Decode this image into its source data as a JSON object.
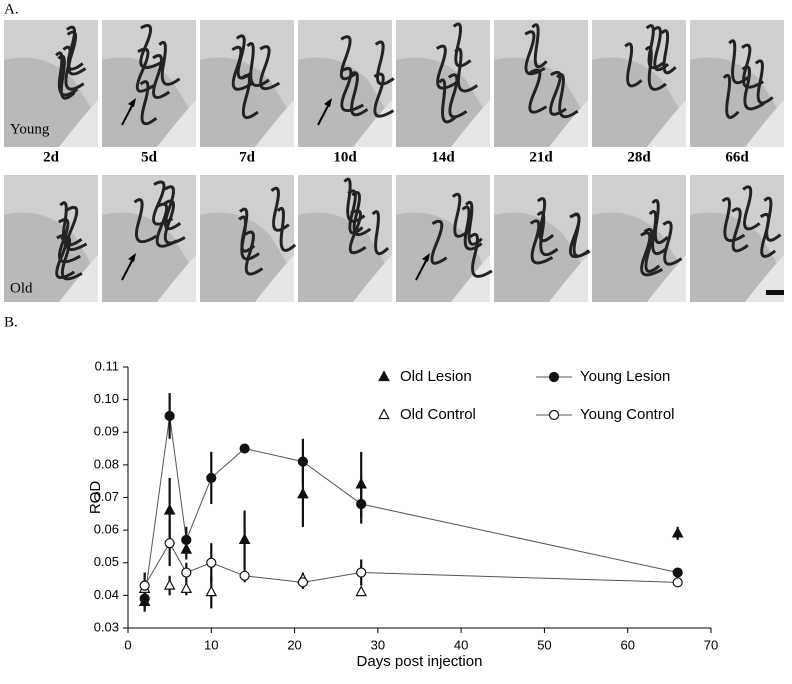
{
  "panel_a": {
    "label": "A.",
    "rows": [
      "Young",
      "Old"
    ],
    "days": [
      "2d",
      "5d",
      "7d",
      "10d",
      "14d",
      "21d",
      "28d",
      "66d"
    ]
  },
  "panel_b_label": "B.",
  "chart_data": {
    "type": "scatter",
    "x_label": "Days post injection",
    "y_label": "ROD",
    "xlim": [
      0,
      70
    ],
    "xticks": [
      0,
      10,
      20,
      30,
      40,
      50,
      60,
      70
    ],
    "ylim": [
      0.03,
      0.11
    ],
    "yticks": [
      0.03,
      0.04,
      0.05,
      0.06,
      0.07,
      0.08,
      0.09,
      {
        "value": 0.1,
        "label": "0.10"
      },
      0.11
    ],
    "legend": "upper right",
    "x": [
      2,
      5,
      7,
      10,
      14,
      21,
      28,
      66
    ],
    "series": [
      {
        "name": "Old Lesion",
        "color": "#111111",
        "marker": "triangle",
        "filled": true,
        "line": false,
        "values": [
          0.038,
          0.066,
          0.054,
          null,
          0.057,
          0.071,
          0.074,
          0.059
        ],
        "errors": [
          0.003,
          0.01,
          0.003,
          null,
          0.009,
          0.01,
          0.01,
          0.002
        ]
      },
      {
        "name": "Young Lesion",
        "color": "#111111",
        "marker": "circle",
        "filled": true,
        "line": true,
        "values": [
          0.039,
          0.095,
          0.057,
          0.076,
          0.085,
          0.081,
          0.068,
          0.047
        ],
        "errors": [
          0.003,
          0.007,
          0.004,
          0.008,
          0.001,
          0.007,
          0.006,
          0.001
        ]
      },
      {
        "name": "Old Control",
        "color": "#111111",
        "marker": "triangle",
        "filled": false,
        "line": false,
        "values": [
          0.042,
          0.043,
          0.042,
          0.041,
          null,
          0.045,
          0.041,
          null
        ],
        "errors": [
          0.002,
          0.003,
          0.002,
          0.005,
          null,
          0.002,
          0.001,
          null
        ]
      },
      {
        "name": "Young Control",
        "color": "#111111",
        "marker": "circle",
        "filled": false,
        "line": true,
        "values": [
          0.043,
          0.056,
          0.047,
          0.05,
          0.046,
          0.044,
          0.047,
          0.044
        ],
        "errors": [
          0.004,
          0.007,
          0.003,
          0.006,
          0.002,
          0.002,
          0.004,
          0.001
        ]
      }
    ]
  }
}
